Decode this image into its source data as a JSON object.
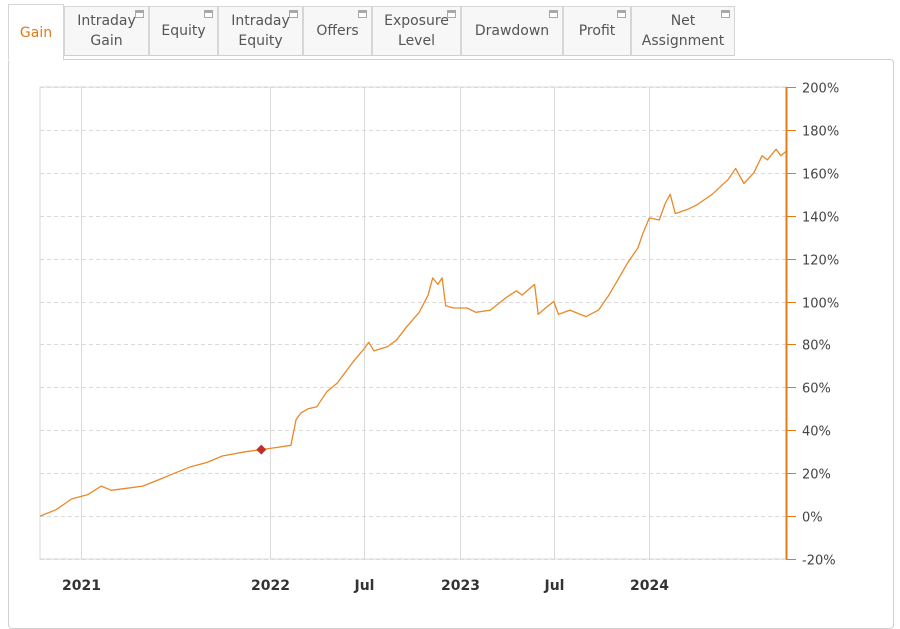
{
  "tabs": [
    {
      "label": "Gain",
      "active": true
    },
    {
      "label": "Intraday\nGain",
      "active": false
    },
    {
      "label": "Equity",
      "active": false
    },
    {
      "label": "Intraday\nEquity",
      "active": false
    },
    {
      "label": "Offers",
      "active": false
    },
    {
      "label": "Exposure\nLevel",
      "active": false
    },
    {
      "label": "Drawdown",
      "active": false
    },
    {
      "label": "Profit",
      "active": false
    },
    {
      "label": "Net\nAssignment",
      "active": false
    }
  ],
  "colors": {
    "accent": "#e07b18",
    "line": "#e8892a",
    "marker": "#c0302a",
    "grid": "#d9d9d9",
    "tab_bg": "#f7f7f7"
  },
  "chart_data": {
    "type": "line",
    "title": "",
    "xlabel": "",
    "ylabel": "",
    "y_axis_side": "right",
    "ylim": [
      -20,
      200
    ],
    "y_ticks": [
      -20,
      0,
      20,
      40,
      60,
      80,
      100,
      120,
      140,
      160,
      180,
      200
    ],
    "y_tick_labels": [
      "-20%",
      "0%",
      "20%",
      "40%",
      "60%",
      "80%",
      "100%",
      "120%",
      "140%",
      "160%",
      "180%",
      "200%"
    ],
    "xlim": [
      "2020-10-15",
      "2024-09-20"
    ],
    "x_ticks": [
      {
        "date": "2021-01-01",
        "label": "2021"
      },
      {
        "date": "2022-01-01",
        "label": "2022"
      },
      {
        "date": "2022-07-01",
        "label": "Jul"
      },
      {
        "date": "2023-01-01",
        "label": "2023"
      },
      {
        "date": "2023-07-01",
        "label": "Jul"
      },
      {
        "date": "2024-01-01",
        "label": "2024"
      }
    ],
    "grid": true,
    "series": [
      {
        "points": [
          [
            "2020-10-15",
            0
          ],
          [
            "2020-11-15",
            3
          ],
          [
            "2020-12-15",
            8
          ],
          [
            "2021-01-15",
            10
          ],
          [
            "2021-02-10",
            14
          ],
          [
            "2021-03-01",
            12
          ],
          [
            "2021-04-01",
            13
          ],
          [
            "2021-05-01",
            14
          ],
          [
            "2021-06-01",
            17
          ],
          [
            "2021-07-01",
            20
          ],
          [
            "2021-08-01",
            23
          ],
          [
            "2021-09-01",
            25
          ],
          [
            "2021-10-01",
            28
          ],
          [
            "2021-11-15",
            30
          ],
          [
            "2021-12-15",
            31
          ],
          [
            "2022-01-15",
            32
          ],
          [
            "2022-02-10",
            33
          ],
          [
            "2022-02-20",
            45
          ],
          [
            "2022-03-01",
            48
          ],
          [
            "2022-03-15",
            50
          ],
          [
            "2022-04-01",
            51
          ],
          [
            "2022-04-20",
            58
          ],
          [
            "2022-05-10",
            62
          ],
          [
            "2022-06-10",
            72
          ],
          [
            "2022-07-01",
            78
          ],
          [
            "2022-07-10",
            81
          ],
          [
            "2022-07-20",
            77
          ],
          [
            "2022-08-15",
            79
          ],
          [
            "2022-09-01",
            82
          ],
          [
            "2022-09-20",
            88
          ],
          [
            "2022-10-15",
            95
          ],
          [
            "2022-11-01",
            103
          ],
          [
            "2022-11-10",
            111
          ],
          [
            "2022-11-20",
            108
          ],
          [
            "2022-11-28",
            111
          ],
          [
            "2022-12-05",
            98
          ],
          [
            "2022-12-20",
            97
          ],
          [
            "2023-01-15",
            97
          ],
          [
            "2023-02-01",
            95
          ],
          [
            "2023-03-01",
            96
          ],
          [
            "2023-04-01",
            102
          ],
          [
            "2023-04-20",
            105
          ],
          [
            "2023-05-01",
            103
          ],
          [
            "2023-05-15",
            106
          ],
          [
            "2023-05-25",
            108
          ],
          [
            "2023-06-01",
            94
          ],
          [
            "2023-06-15",
            97
          ],
          [
            "2023-07-01",
            100
          ],
          [
            "2023-07-10",
            94
          ],
          [
            "2023-08-01",
            96
          ],
          [
            "2023-09-01",
            93
          ],
          [
            "2023-09-25",
            96
          ],
          [
            "2023-10-15",
            103
          ],
          [
            "2023-11-01",
            110
          ],
          [
            "2023-11-20",
            118
          ],
          [
            "2023-12-10",
            125
          ],
          [
            "2023-12-20",
            132
          ],
          [
            "2024-01-01",
            139
          ],
          [
            "2024-01-20",
            138
          ],
          [
            "2024-02-01",
            146
          ],
          [
            "2024-02-10",
            150
          ],
          [
            "2024-02-20",
            141
          ],
          [
            "2024-03-15",
            143
          ],
          [
            "2024-04-01",
            145
          ],
          [
            "2024-05-01",
            150
          ],
          [
            "2024-06-01",
            157
          ],
          [
            "2024-06-15",
            162
          ],
          [
            "2024-07-01",
            155
          ],
          [
            "2024-07-20",
            160
          ],
          [
            "2024-08-05",
            168
          ],
          [
            "2024-08-15",
            166
          ],
          [
            "2024-09-01",
            171
          ],
          [
            "2024-09-10",
            168
          ],
          [
            "2024-09-20",
            170
          ]
        ]
      }
    ],
    "marker": {
      "date": "2021-12-15",
      "value": 31,
      "shape": "diamond"
    }
  }
}
